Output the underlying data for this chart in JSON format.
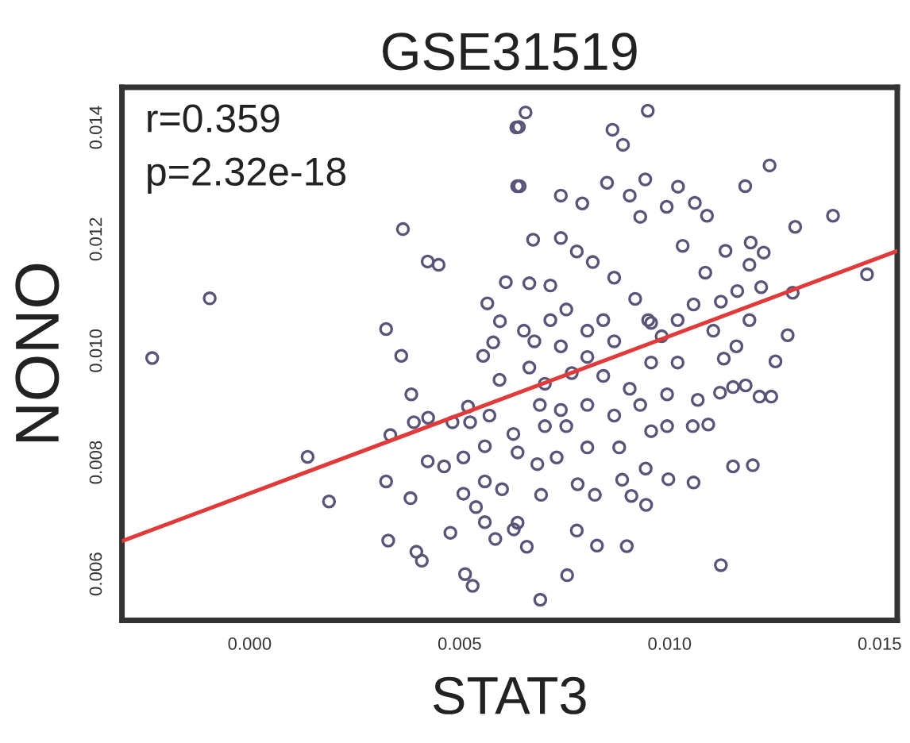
{
  "chart_data": {
    "type": "scatter",
    "title": "GSE31519",
    "xlabel": "STAT3",
    "ylabel": "NONO",
    "annotations": [
      "r=0.359",
      "p=2.32e-18"
    ],
    "xlim": [
      -0.00304,
      0.01542
    ],
    "ylim": [
      0.00517,
      0.01472
    ],
    "xticks": [
      {
        "value": 0,
        "label": "0.000"
      },
      0.005,
      {
        "value": 0.01,
        "label": "0.010"
      },
      0.015
    ],
    "yticks": [
      0.006,
      0.008,
      {
        "value": 0.01,
        "label": "0.010"
      },
      0.012,
      0.014
    ],
    "grid": false,
    "marker": "circle",
    "series": [
      {
        "color": "#5a5478",
        "x": [
          -0.00232,
          -0.00095,
          0.00365,
          0.00424,
          0.0045,
          0.00325,
          0.00361,
          0.00138,
          0.00189,
          0.00325,
          0.0033,
          0.00397,
          0.0041,
          0.00513,
          0.00531,
          0.00385,
          0.00391,
          0.00425,
          0.00335,
          0.00424,
          0.00463,
          0.00383,
          0.00478,
          0.00509,
          0.0052,
          0.00525,
          0.00483,
          0.00595,
          0.00556,
          0.0058,
          0.00566,
          0.00596,
          0.0061,
          0.00635,
          0.00637,
          0.00571,
          0.0056,
          0.00509,
          0.0056,
          0.00601,
          0.0056,
          0.00585,
          0.00539,
          0.00629,
          0.00657,
          0.00641,
          0.00948,
          0.00864,
          0.00889,
          0.01238,
          0.00643,
          0.00851,
          0.00942,
          0.0118,
          0.01389,
          0.01299,
          0.0147,
          0.01293,
          0.01281,
          0.01252,
          0.01242,
          0.01214,
          0.01181,
          0.01151,
          0.01198,
          0.01122,
          0.00692,
          0.00756,
          0.00827,
          0.00898,
          0.00944,
          0.01057,
          0.00997,
          0.00638,
          0.0066,
          0.00779,
          0.00781,
          0.00822,
          0.00887,
          0.00909,
          0.00694,
          0.00731,
          0.00685,
          0.00638,
          0.00628,
          0.01055,
          0.01092,
          0.01067,
          0.0112,
          0.01151,
          0.01159,
          0.01129,
          0.0119,
          0.01161,
          0.01218,
          0.0119,
          0.01224,
          0.01133,
          0.01193,
          0.0106,
          0.01089,
          0.0102,
          0.00993,
          0.01031,
          0.01085,
          0.01122,
          0.01104,
          0.01057,
          0.01019,
          0.00981,
          0.00949,
          0.00918,
          0.00868,
          0.00817,
          0.00779,
          0.00741,
          0.00741,
          0.00792,
          0.0093,
          0.00905,
          0.00675,
          0.00666,
          0.00716,
          0.00754,
          0.00716,
          0.00653,
          0.00678,
          0.00741,
          0.00804,
          0.00868,
          0.00956,
          0.00842,
          0.00804,
          0.00666,
          0.00703,
          0.00767,
          0.00842,
          0.00905,
          0.00956,
          0.01019,
          0.00994,
          0.0093,
          0.00868,
          0.00804,
          0.00741,
          0.00691,
          0.00804,
          0.0088,
          0.00956,
          0.00994,
          0.00943,
          0.00754,
          0.00703
        ],
        "values": [
          0.00987,
          0.01094,
          0.01218,
          0.0116,
          0.01154,
          0.01039,
          0.00991,
          0.0081,
          0.0073,
          0.00766,
          0.0066,
          0.0064,
          0.00624,
          0.006,
          0.00579,
          0.00922,
          0.00872,
          0.0088,
          0.00849,
          0.00802,
          0.00793,
          0.00736,
          0.00674,
          0.00744,
          0.009,
          0.00872,
          0.00872,
          0.00948,
          0.00991,
          0.01015,
          0.01085,
          0.01053,
          0.01123,
          0.014,
          0.01295,
          0.00884,
          0.00829,
          0.00809,
          0.00766,
          0.00752,
          0.00693,
          0.00663,
          0.0072,
          0.0068,
          0.01427,
          0.01401,
          0.0143,
          0.01396,
          0.01369,
          0.01332,
          0.01295,
          0.01301,
          0.01307,
          0.01295,
          0.01242,
          0.01222,
          0.01137,
          0.01104,
          0.01028,
          0.00981,
          0.00918,
          0.00918,
          0.00938,
          0.00793,
          0.00795,
          0.00616,
          0.00554,
          0.00598,
          0.00651,
          0.0065,
          0.00724,
          0.00764,
          0.0077,
          0.00692,
          0.00649,
          0.00678,
          0.00761,
          0.00742,
          0.00769,
          0.0074,
          0.00742,
          0.00809,
          0.00797,
          0.00818,
          0.00851,
          0.00865,
          0.00868,
          0.00912,
          0.00925,
          0.00935,
          0.01008,
          0.00986,
          0.01055,
          0.01107,
          0.01114,
          0.01154,
          0.01176,
          0.01179,
          0.01194,
          0.01265,
          0.01242,
          0.01294,
          0.01258,
          0.01188,
          0.0114,
          0.01088,
          0.01036,
          0.01083,
          0.01055,
          0.01026,
          0.01055,
          0.01093,
          0.01131,
          0.01159,
          0.01178,
          0.01202,
          0.01278,
          0.01264,
          0.0124,
          0.01278,
          0.01199,
          0.01121,
          0.01117,
          0.01074,
          0.01055,
          0.01036,
          0.01017,
          0.01008,
          0.00989,
          0.01017,
          0.0105,
          0.01055,
          0.01036,
          0.0097,
          0.00941,
          0.0096,
          0.00955,
          0.00932,
          0.00979,
          0.00979,
          0.00922,
          0.00903,
          0.00884,
          0.00903,
          0.00894,
          0.00903,
          0.00827,
          0.00827,
          0.00856,
          0.00865,
          0.00789,
          0.00865,
          0.00865
        ]
      },
      {
        "type": "line",
        "color": "#e03a3a",
        "marker": "none",
        "x": [
          -0.00304,
          0.01542
        ],
        "values": [
          0.00659,
          0.01179
        ]
      }
    ]
  }
}
